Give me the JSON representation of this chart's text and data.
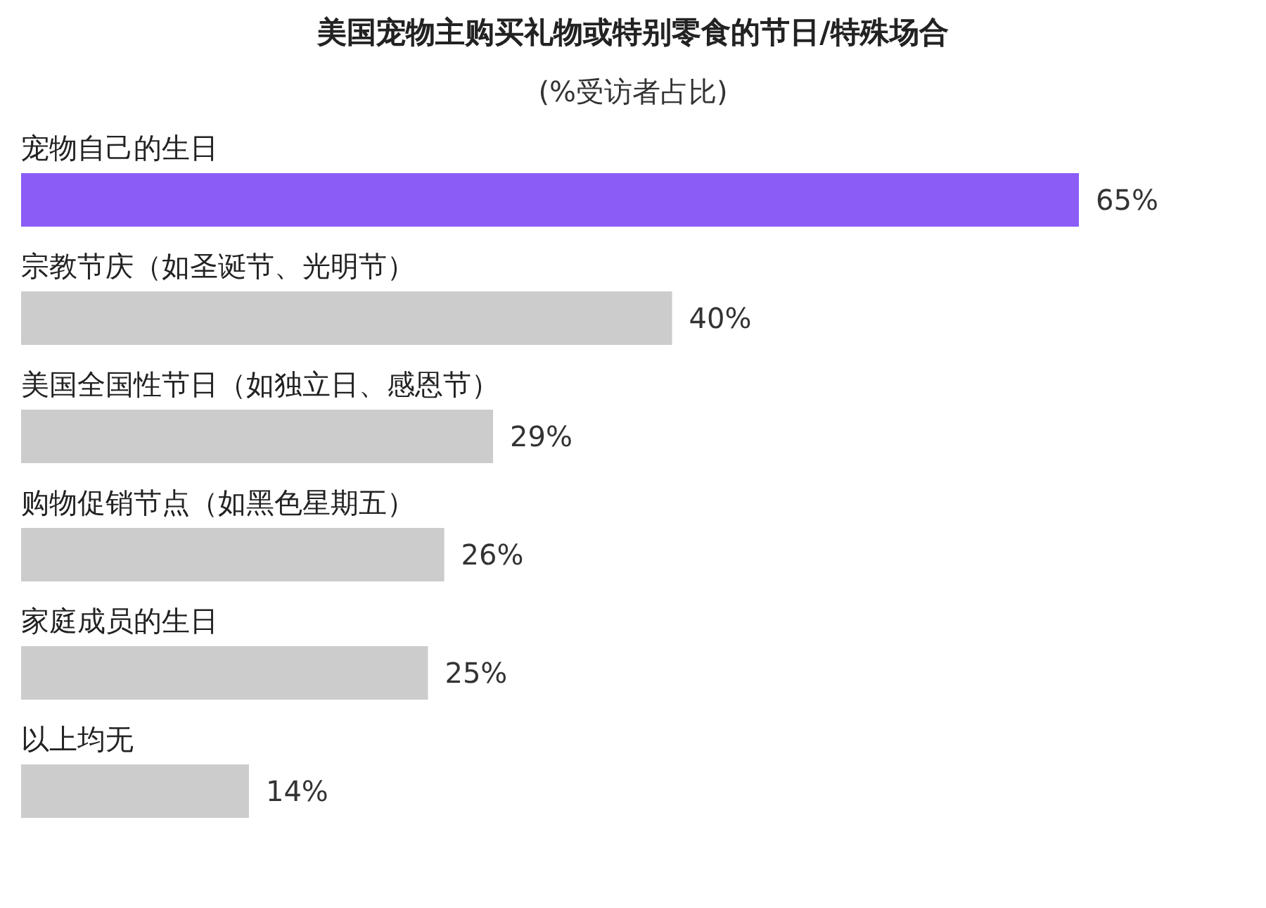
{
  "chart_data": {
    "type": "bar",
    "orientation": "horizontal",
    "title": "美国宠物主购买礼物或特别零食的节日/特殊场合",
    "subtitle": "(%受访者占比)",
    "categories": [
      "宠物自己的生日",
      "宗教节庆（如圣诞节、光明节）",
      "美国全国性节日（如独立日、感恩节）",
      "购物促销节点（如黑色星期五）",
      "家庭成员的生日",
      "以上均无"
    ],
    "values": [
      65,
      40,
      29,
      26,
      25,
      14
    ],
    "value_labels": [
      "65%",
      "40%",
      "29%",
      "26%",
      "25%",
      "14%"
    ],
    "colors": [
      "#8b5cf6",
      "#cccccc",
      "#cccccc",
      "#cccccc",
      "#cccccc",
      "#cccccc"
    ]
  }
}
